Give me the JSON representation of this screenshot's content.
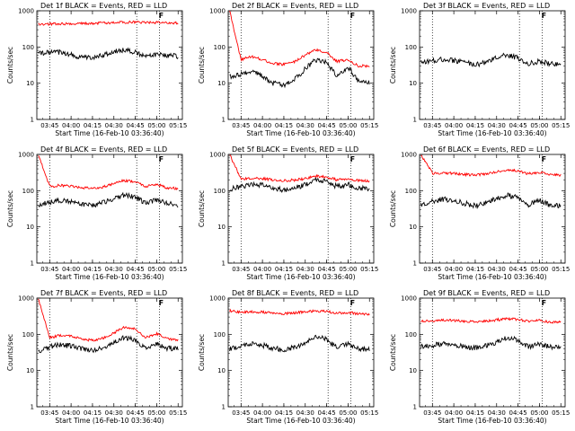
{
  "chart_data": [
    {
      "type": "line",
      "title": "Det 1f BLACK = Events, RED = LLD",
      "xlabel": "Start Time (16-Feb-10 03:36:40)",
      "ylabel": "Counts/sec",
      "yscale": "log",
      "ylim": [
        1,
        1000
      ],
      "xticks": [
        "03:45",
        "04:00",
        "04:15",
        "04:30",
        "04:45",
        "05:00",
        "05:15"
      ],
      "yticks": [
        "1",
        "10",
        "100",
        "1000"
      ],
      "x": [
        "03:37",
        "03:45",
        "03:52",
        "04:00",
        "04:07",
        "04:15",
        "04:22",
        "04:30",
        "04:37",
        "04:45",
        "04:52",
        "05:00",
        "05:07",
        "05:15"
      ],
      "series": [
        {
          "name": "BLACK = Events",
          "color": "#000000",
          "values": [
            65,
            70,
            72,
            62,
            52,
            50,
            58,
            75,
            82,
            70,
            55,
            62,
            60,
            55
          ]
        },
        {
          "name": "RED = LLD",
          "color": "#ff0000",
          "values": [
            430,
            430,
            440,
            440,
            445,
            450,
            460,
            470,
            480,
            490,
            480,
            470,
            465,
            460
          ]
        }
      ],
      "vlines": [
        "03:45",
        "04:46",
        "05:02"
      ],
      "marker": "F"
    },
    {
      "type": "line",
      "title": "Det 2f BLACK = Events, RED = LLD",
      "xlabel": "Start Time (16-Feb-10 03:36:40)",
      "ylabel": "Counts/sec",
      "yscale": "log",
      "ylim": [
        1,
        1000
      ],
      "xticks": [
        "03:45",
        "04:00",
        "04:15",
        "04:30",
        "04:45",
        "05:00",
        "05:15"
      ],
      "yticks": [
        "1",
        "10",
        "100",
        "1000"
      ],
      "x": [
        "03:37",
        "03:45",
        "03:52",
        "04:00",
        "04:07",
        "04:15",
        "04:22",
        "04:30",
        "04:37",
        "04:45",
        "04:52",
        "05:00",
        "05:07",
        "05:15"
      ],
      "series": [
        {
          "name": "BLACK = Events",
          "color": "#000000",
          "values": [
            15,
            18,
            22,
            16,
            10,
            9,
            12,
            25,
            45,
            38,
            15,
            28,
            12,
            10
          ]
        },
        {
          "name": "RED = LLD",
          "color": "#ff0000",
          "values": [
            1000,
            45,
            55,
            45,
            35,
            33,
            38,
            60,
            85,
            70,
            40,
            45,
            30,
            30
          ]
        }
      ],
      "vlines": [
        "03:45",
        "04:46",
        "05:02"
      ],
      "marker": "F"
    },
    {
      "type": "line",
      "title": "Det 3f BLACK = Events, RED = LLD",
      "xlabel": "Start Time (16-Feb-10 03:36:40)",
      "ylabel": "Counts/sec",
      "yscale": "log",
      "ylim": [
        1,
        1000
      ],
      "xticks": [
        "03:45",
        "04:00",
        "04:15",
        "04:30",
        "04:45",
        "05:00",
        "05:15"
      ],
      "yticks": [
        "1",
        "10",
        "100",
        "1000"
      ],
      "x": [
        "03:37",
        "03:45",
        "03:52",
        "04:00",
        "04:07",
        "04:15",
        "04:22",
        "04:30",
        "04:37",
        "04:45",
        "04:52",
        "05:00",
        "05:07",
        "05:15"
      ],
      "series": [
        {
          "name": "BLACK = Events",
          "color": "#000000",
          "values": [
            38,
            42,
            45,
            42,
            38,
            32,
            38,
            52,
            60,
            50,
            35,
            40,
            35,
            32
          ]
        }
      ],
      "vlines": [
        "03:45",
        "04:46",
        "05:02"
      ],
      "marker": "F"
    },
    {
      "type": "line",
      "title": "Det 4f BLACK = Events, RED = LLD",
      "xlabel": "Start Time (16-Feb-10 03:36:40)",
      "ylabel": "Counts/sec",
      "yscale": "log",
      "ylim": [
        1,
        1000
      ],
      "xticks": [
        "03:45",
        "04:00",
        "04:15",
        "04:30",
        "04:45",
        "05:00",
        "05:15"
      ],
      "yticks": [
        "1",
        "10",
        "100",
        "1000"
      ],
      "x": [
        "03:37",
        "03:45",
        "03:52",
        "04:00",
        "04:07",
        "04:15",
        "04:22",
        "04:30",
        "04:37",
        "04:45",
        "04:52",
        "05:00",
        "05:07",
        "05:15"
      ],
      "series": [
        {
          "name": "BLACK = Events",
          "color": "#000000",
          "values": [
            40,
            48,
            52,
            50,
            42,
            40,
            46,
            62,
            75,
            68,
            45,
            55,
            45,
            40
          ]
        },
        {
          "name": "RED = LLD",
          "color": "#ff0000",
          "values": [
            1000,
            130,
            140,
            135,
            120,
            115,
            125,
            160,
            190,
            180,
            130,
            150,
            120,
            115
          ]
        }
      ],
      "vlines": [
        "03:45",
        "04:46",
        "05:02"
      ],
      "marker": "F"
    },
    {
      "type": "line",
      "title": "Det 5f BLACK = Events, RED = LLD",
      "xlabel": "Start Time (16-Feb-10 03:36:40)",
      "ylabel": "Counts/sec",
      "yscale": "log",
      "ylim": [
        1,
        1000
      ],
      "xticks": [
        "03:45",
        "04:00",
        "04:15",
        "04:30",
        "04:45",
        "05:00",
        "05:15"
      ],
      "yticks": [
        "1",
        "10",
        "100",
        "1000"
      ],
      "x": [
        "03:37",
        "03:45",
        "03:52",
        "04:00",
        "04:07",
        "04:15",
        "04:22",
        "04:30",
        "04:37",
        "04:45",
        "04:52",
        "05:00",
        "05:07",
        "05:15"
      ],
      "series": [
        {
          "name": "BLACK = Events",
          "color": "#000000",
          "values": [
            110,
            130,
            150,
            140,
            120,
            105,
            115,
            150,
            200,
            180,
            130,
            150,
            120,
            115
          ]
        },
        {
          "name": "RED = LLD",
          "color": "#ff0000",
          "values": [
            1000,
            210,
            220,
            215,
            200,
            190,
            195,
            215,
            250,
            240,
            200,
            210,
            190,
            185
          ]
        }
      ],
      "vlines": [
        "03:45",
        "04:46",
        "05:02"
      ],
      "marker": "F"
    },
    {
      "type": "line",
      "title": "Det 6f BLACK = Events, RED = LLD",
      "xlabel": "Start Time (16-Feb-10 03:36:40)",
      "ylabel": "Counts/sec",
      "yscale": "log",
      "ylim": [
        1,
        1000
      ],
      "xticks": [
        "03:45",
        "04:00",
        "04:15",
        "04:30",
        "04:45",
        "05:00",
        "05:15"
      ],
      "yticks": [
        "1",
        "10",
        "100",
        "1000"
      ],
      "x": [
        "03:37",
        "03:45",
        "03:52",
        "04:00",
        "04:07",
        "04:15",
        "04:22",
        "04:30",
        "04:37",
        "04:45",
        "04:52",
        "05:00",
        "05:07",
        "05:15"
      ],
      "series": [
        {
          "name": "BLACK = Events",
          "color": "#000000",
          "values": [
            40,
            50,
            58,
            55,
            45,
            38,
            45,
            60,
            75,
            65,
            40,
            55,
            40,
            38
          ]
        },
        {
          "name": "RED = LLD",
          "color": "#ff0000",
          "values": [
            1000,
            300,
            310,
            300,
            280,
            270,
            285,
            330,
            370,
            350,
            290,
            320,
            280,
            270
          ]
        }
      ],
      "vlines": [
        "03:45",
        "04:46",
        "05:02"
      ],
      "marker": "F"
    },
    {
      "type": "line",
      "title": "Det 7f BLACK = Events, RED = LLD",
      "xlabel": "Start Time (16-Feb-10 03:36:40)",
      "ylabel": "Counts/sec",
      "yscale": "log",
      "ylim": [
        1,
        1000
      ],
      "xticks": [
        "03:45",
        "04:00",
        "04:15",
        "04:30",
        "04:45",
        "05:00",
        "05:15"
      ],
      "yticks": [
        "1",
        "10",
        "100",
        "1000"
      ],
      "x": [
        "03:37",
        "03:45",
        "03:52",
        "04:00",
        "04:07",
        "04:15",
        "04:22",
        "04:30",
        "04:37",
        "04:45",
        "04:52",
        "05:00",
        "05:07",
        "05:15"
      ],
      "series": [
        {
          "name": "BLACK = Events",
          "color": "#000000",
          "values": [
            35,
            45,
            52,
            48,
            40,
            35,
            42,
            58,
            80,
            70,
            40,
            55,
            42,
            40
          ]
        },
        {
          "name": "RED = LLD",
          "color": "#ff0000",
          "values": [
            1000,
            80,
            95,
            90,
            75,
            68,
            78,
            110,
            160,
            140,
            80,
            105,
            75,
            70
          ]
        }
      ],
      "vlines": [
        "03:45",
        "04:46",
        "05:02"
      ],
      "marker": "F"
    },
    {
      "type": "line",
      "title": "Det 8f BLACK = Events, RED = LLD",
      "xlabel": "Start Time (16-Feb-10 03:36:40)",
      "ylabel": "Counts/sec",
      "yscale": "log",
      "ylim": [
        1,
        1000
      ],
      "xticks": [
        "03:45",
        "04:00",
        "04:15",
        "04:30",
        "04:45",
        "05:00",
        "05:15"
      ],
      "yticks": [
        "1",
        "10",
        "100",
        "1000"
      ],
      "x": [
        "03:37",
        "03:45",
        "03:52",
        "04:00",
        "04:07",
        "04:15",
        "04:22",
        "04:30",
        "04:37",
        "04:45",
        "04:52",
        "05:00",
        "05:07",
        "05:15"
      ],
      "series": [
        {
          "name": "BLACK = Events",
          "color": "#000000",
          "values": [
            40,
            48,
            55,
            50,
            42,
            38,
            44,
            58,
            85,
            75,
            42,
            55,
            40,
            38
          ]
        },
        {
          "name": "RED = LLD",
          "color": "#ff0000",
          "values": [
            450,
            400,
            420,
            410,
            390,
            370,
            390,
            420,
            440,
            430,
            380,
            400,
            370,
            360
          ]
        }
      ],
      "vlines": [
        "03:45",
        "04:46",
        "05:02"
      ],
      "marker": "F"
    },
    {
      "type": "line",
      "title": "Det 9f BLACK = Events, RED = LLD",
      "xlabel": "Start Time (16-Feb-10 03:36:40)",
      "ylabel": "Counts/sec",
      "yscale": "log",
      "ylim": [
        1,
        1000
      ],
      "xticks": [
        "03:45",
        "04:00",
        "04:15",
        "04:30",
        "04:45",
        "05:00",
        "05:15"
      ],
      "yticks": [
        "1",
        "10",
        "100",
        "1000"
      ],
      "x": [
        "03:37",
        "03:45",
        "03:52",
        "04:00",
        "04:07",
        "04:15",
        "04:22",
        "04:30",
        "04:37",
        "04:45",
        "04:52",
        "05:00",
        "05:07",
        "05:15"
      ],
      "series": [
        {
          "name": "BLACK = Events",
          "color": "#000000",
          "values": [
            45,
            50,
            55,
            52,
            45,
            42,
            48,
            60,
            80,
            70,
            45,
            55,
            45,
            42
          ]
        },
        {
          "name": "RED = LLD",
          "color": "#ff0000",
          "values": [
            230,
            235,
            245,
            240,
            230,
            220,
            230,
            250,
            270,
            260,
            225,
            240,
            220,
            215
          ]
        }
      ],
      "vlines": [
        "03:45",
        "04:46",
        "05:02"
      ],
      "marker": "F"
    }
  ]
}
